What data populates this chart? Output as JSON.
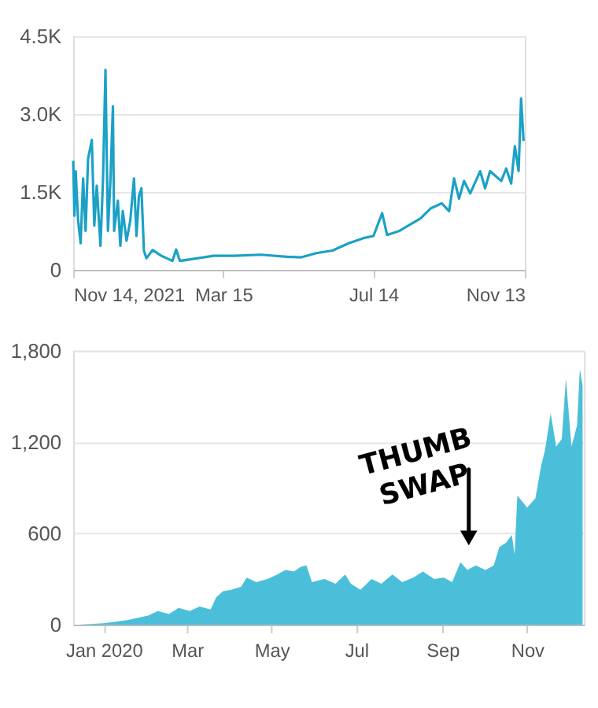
{
  "chart_data": [
    {
      "type": "line",
      "x": [
        "2021-11-14",
        "2021-11-15",
        "2021-11-16",
        "2021-11-18",
        "2021-11-20",
        "2021-11-22",
        "2021-11-24",
        "2021-11-26",
        "2021-11-29",
        "2021-12-01",
        "2021-12-03",
        "2021-12-06",
        "2021-12-08",
        "2021-12-10",
        "2021-12-12",
        "2021-12-14",
        "2021-12-16",
        "2021-12-17",
        "2021-12-20",
        "2021-12-22",
        "2021-12-24",
        "2021-12-27",
        "2021-12-30",
        "2022-01-02",
        "2022-01-04",
        "2022-01-06",
        "2022-01-08",
        "2022-01-10",
        "2022-01-12",
        "2022-01-17",
        "2022-01-24",
        "2022-02-02",
        "2022-02-05",
        "2022-02-08",
        "2022-02-22",
        "2022-03-07",
        "2022-03-24",
        "2022-04-14",
        "2022-05-05",
        "2022-05-17",
        "2022-05-29",
        "2022-06-11",
        "2022-06-24",
        "2022-07-06",
        "2022-07-14",
        "2022-07-21",
        "2022-07-25",
        "2022-08-04",
        "2022-08-11",
        "2022-08-21",
        "2022-08-29",
        "2022-09-07",
        "2022-09-13",
        "2022-09-17",
        "2022-09-21",
        "2022-09-25",
        "2022-09-30",
        "2022-10-08",
        "2022-10-12",
        "2022-10-16",
        "2022-10-25",
        "2022-10-29",
        "2022-11-02",
        "2022-11-05",
        "2022-11-08",
        "2022-11-10",
        "2022-11-12"
      ],
      "series": [
        {
          "color": "#1ba1c6",
          "values": [
            2100,
            1040,
            1900,
            940,
            510,
            1760,
            750,
            2140,
            2500,
            850,
            1620,
            460,
            1710,
            3850,
            750,
            1710,
            3150,
            750,
            1330,
            460,
            1130,
            560,
            940,
            1760,
            650,
            1420,
            1570,
            370,
            220,
            380,
            270,
            170,
            390,
            170,
            220,
            270,
            270,
            290,
            250,
            240,
            320,
            370,
            510,
            610,
            650,
            1090,
            670,
            750,
            850,
            990,
            1180,
            1280,
            1130,
            1760,
            1370,
            1710,
            1470,
            1900,
            1570,
            1900,
            1710,
            1950,
            1660,
            2380,
            1900,
            3300,
            2480
          ]
        }
      ],
      "xlim": [
        "2021-11-14",
        "2022-11-13"
      ],
      "xticks": [
        {
          "value": "2021-11-14",
          "label": "Nov 14, 2021"
        },
        {
          "value": "2022-03-15",
          "label": "Mar 15"
        },
        {
          "value": "2022-07-14",
          "label": "Jul 14"
        },
        {
          "value": "2022-11-13",
          "label": "Nov 13"
        }
      ],
      "ylim": [
        0,
        4500
      ],
      "yticks": [
        0,
        {
          "value": 1500,
          "label": "1.5K"
        },
        {
          "value": 3000,
          "label": "3.0K"
        },
        {
          "value": 4500,
          "label": "4.5K"
        }
      ],
      "grid": "y"
    },
    {
      "type": "area",
      "x": [
        "2019-12-12",
        "2020-01-01",
        "2020-01-18",
        "2020-02-02",
        "2020-02-09",
        "2020-02-17",
        "2020-02-24",
        "2020-03-03",
        "2020-03-10",
        "2020-03-18",
        "2020-03-22",
        "2020-03-27",
        "2020-04-02",
        "2020-04-09",
        "2020-04-13",
        "2020-04-20",
        "2020-04-28",
        "2020-05-05",
        "2020-05-11",
        "2020-05-17",
        "2020-05-22",
        "2020-05-26",
        "2020-05-30",
        "2020-06-08",
        "2020-06-16",
        "2020-06-23",
        "2020-06-27",
        "2020-07-04",
        "2020-07-12",
        "2020-07-19",
        "2020-07-27",
        "2020-08-03",
        "2020-08-11",
        "2020-08-18",
        "2020-08-26",
        "2020-09-02",
        "2020-09-08",
        "2020-09-14",
        "2020-09-19",
        "2020-09-25",
        "2020-10-02",
        "2020-10-08",
        "2020-10-12",
        "2020-10-17",
        "2020-10-21",
        "2020-10-23",
        "2020-10-25",
        "2020-11-01",
        "2020-11-07",
        "2020-11-11",
        "2020-11-14",
        "2020-11-18",
        "2020-11-22",
        "2020-11-26",
        "2020-11-29",
        "2020-12-03",
        "2020-12-07",
        "2020-12-09",
        "2020-12-11"
      ],
      "series": [
        {
          "color": "#4bbfd9",
          "values": [
            0,
            10,
            30,
            60,
            90,
            70,
            110,
            90,
            120,
            100,
            180,
            220,
            230,
            250,
            310,
            280,
            300,
            330,
            360,
            350,
            380,
            390,
            280,
            300,
            270,
            330,
            270,
            230,
            300,
            270,
            330,
            280,
            310,
            350,
            300,
            310,
            280,
            410,
            360,
            390,
            360,
            390,
            510,
            540,
            590,
            460,
            850,
            770,
            830,
            1040,
            1150,
            1390,
            1170,
            1220,
            1620,
            1170,
            1310,
            1680,
            1570
          ]
        }
      ],
      "xlim": [
        "2019-12-10",
        "2020-12-12"
      ],
      "xticks": [
        {
          "value": "2020-01-01",
          "label": "Jan 2020"
        },
        {
          "value": "2020-03-01",
          "label": "Mar"
        },
        {
          "value": "2020-05-01",
          "label": "May"
        },
        {
          "value": "2020-07-01",
          "label": "Jul"
        },
        {
          "value": "2020-09-01",
          "label": "Sep"
        },
        {
          "value": "2020-11-01",
          "label": "Nov"
        }
      ],
      "ylim": [
        0,
        1800
      ],
      "yticks": [
        0,
        600,
        {
          "value": 1200,
          "label": "1,200"
        },
        {
          "value": 1800,
          "label": "1,800"
        }
      ],
      "grid": "y",
      "annotations": [
        {
          "text": "THUMB SWAP",
          "x": "2020-09-20",
          "y": 570
        }
      ]
    }
  ]
}
